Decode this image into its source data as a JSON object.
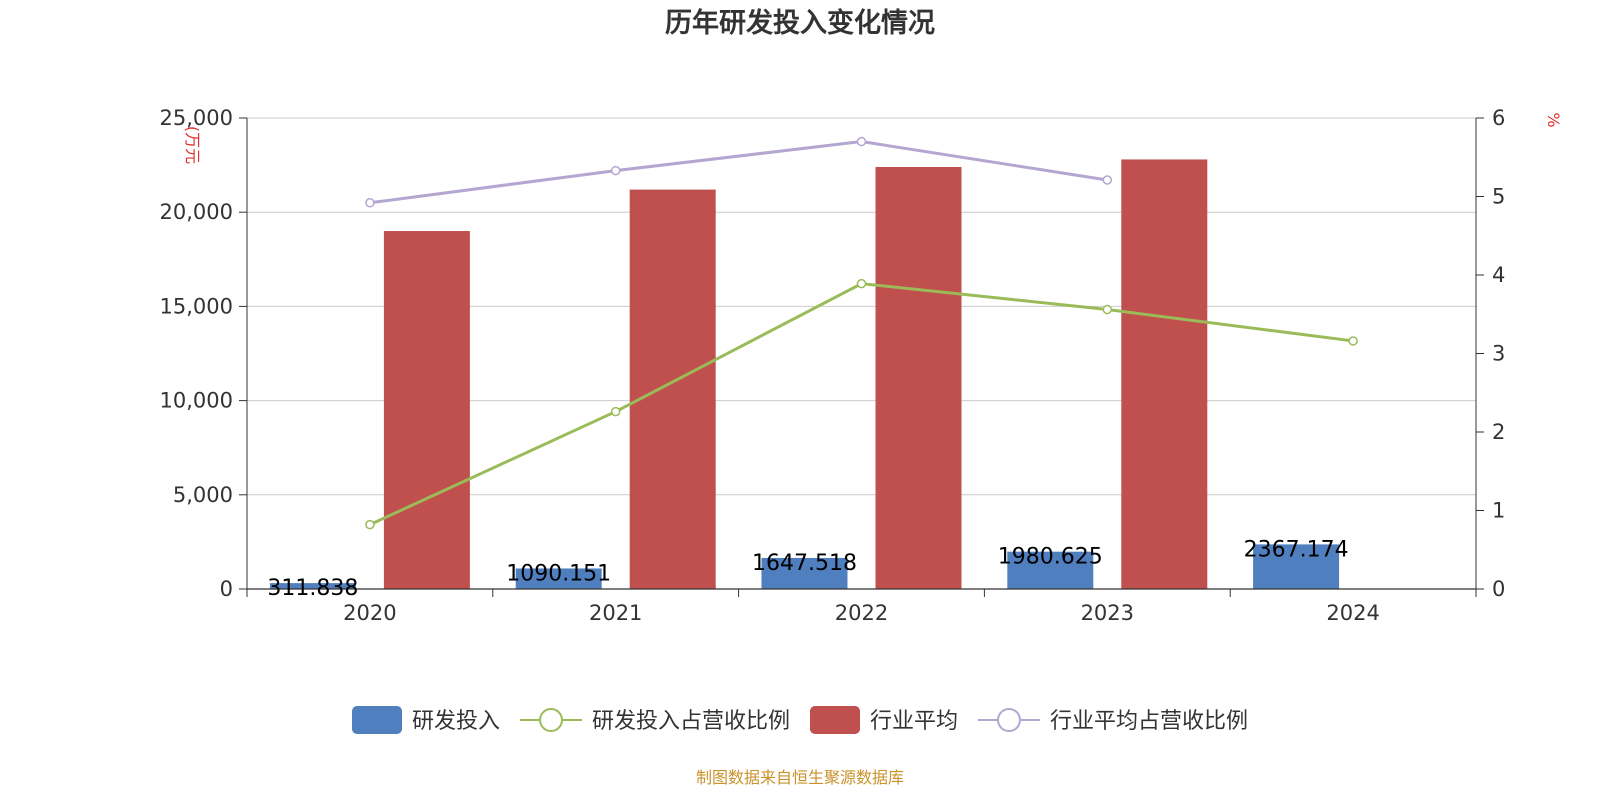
{
  "chart_data": {
    "type": "bar",
    "title": "历年研发投入变化情况",
    "categories": [
      "2020",
      "2021",
      "2022",
      "2023",
      "2024"
    ],
    "y_left": {
      "unit_label": "(万元",
      "ylim": [
        0,
        25000
      ],
      "ticks": [
        0,
        5000,
        10000,
        15000,
        20000,
        25000
      ],
      "tick_labels": [
        "0",
        "5,000",
        "10,000",
        "15,000",
        "20,000",
        "25,000"
      ]
    },
    "y_right": {
      "unit_label": "%",
      "ylim": [
        0,
        6
      ],
      "ticks": [
        0,
        1,
        2,
        3,
        4,
        5,
        6
      ],
      "tick_labels": [
        "0",
        "1",
        "2",
        "3",
        "4",
        "5",
        "6"
      ]
    },
    "grid": true,
    "legend_position": "bottom",
    "series": [
      {
        "name": "研发投入",
        "kind": "bar",
        "axis": "left",
        "color": "#4f7fbf",
        "values": [
          311.838,
          1090.151,
          1647.518,
          1980.625,
          2367.174
        ],
        "labels": [
          "311.838",
          "1090.151",
          "1647.518",
          "1980.625",
          "2367.174"
        ]
      },
      {
        "name": "研发投入占营收比例",
        "kind": "line",
        "axis": "right",
        "color": "#9bbb59",
        "values": [
          0.82,
          2.26,
          3.89,
          3.56,
          3.16
        ]
      },
      {
        "name": "行业平均",
        "kind": "bar",
        "axis": "left",
        "color": "#c0504d",
        "values": [
          19000,
          21200,
          22400,
          22800,
          null
        ]
      },
      {
        "name": "行业平均占营收比例",
        "kind": "line",
        "axis": "right",
        "color": "#b3a6d1",
        "values": [
          4.92,
          5.33,
          5.7,
          5.21,
          null
        ]
      }
    ],
    "source": "制图数据来自恒生聚源数据库"
  }
}
